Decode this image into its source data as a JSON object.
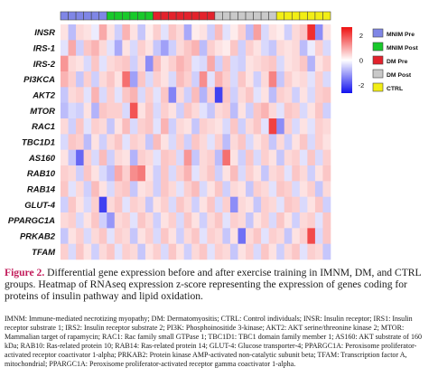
{
  "chart_data": {
    "type": "heatmap",
    "genes": [
      "INSR",
      "IRS-1",
      "IRS-2",
      "PI3KCA",
      "AKT2",
      "MTOR",
      "RAC1",
      "TBC1D1",
      "AS160",
      "RAB10",
      "RAB14",
      "GLUT-4",
      "PPARGC1A",
      "PRKAB2",
      "TFAM"
    ],
    "groups": [
      {
        "name": "MNIM Pre",
        "color": "#7f86e6",
        "n": 6
      },
      {
        "name": "MNIM Post",
        "color": "#18c92a",
        "n": 6
      },
      {
        "name": "DM Pre",
        "color": "#e3222c",
        "n": 8
      },
      {
        "name": "DM Post",
        "color": "#c9c9c9",
        "n": 8
      },
      {
        "name": "CTRL",
        "color": "#f2ee15",
        "n": 7
      }
    ],
    "colorbar": {
      "ticks": [
        "2",
        "0",
        "-2"
      ],
      "min": -2.5,
      "max": 2.5,
      "colors": [
        "#1111ee",
        "#ffffff",
        "#ee1111"
      ]
    },
    "values": [
      [
        0.3,
        -0.7,
        0.4,
        0.3,
        -0.2,
        0.9,
        0.3,
        -0.5,
        0.8,
        0.3,
        -0.6,
        0.2,
        0.5,
        -0.3,
        0.6,
        0.4,
        -0.9,
        0.2,
        0.3,
        -0.5,
        0.7,
        -0.3,
        0.2,
        0.5,
        -0.7,
        1.0,
        -0.4,
        0.3,
        0.2,
        -0.5,
        0.4,
        0.6,
        2.2,
        -1.2,
        0.3
      ],
      [
        -0.3,
        0.9,
        -0.5,
        0.6,
        0.8,
        0.4,
        -0.3,
        -0.9,
        0.3,
        -0.4,
        0.5,
        0.3,
        -0.6,
        -1.0,
        -0.5,
        0.4,
        0.6,
        0.8,
        -0.7,
        0.5,
        0.3,
        0.2,
        0.6,
        -0.5,
        0.5,
        0.3,
        -0.4,
        -0.6,
        0.4,
        0.3,
        0.4,
        -0.7,
        -0.2,
        0.5,
        -0.4
      ],
      [
        1.1,
        0.4,
        0.3,
        -0.4,
        0.6,
        -0.3,
        0.4,
        0.5,
        0.6,
        -0.5,
        0.4,
        -1.2,
        0.7,
        0.3,
        0.5,
        0.8,
        0.6,
        -0.3,
        -0.4,
        0.9,
        -0.5,
        0.6,
        -0.4,
        -0.5,
        0.3,
        0.4,
        0.5,
        0.6,
        -0.4,
        0.3,
        0.4,
        0.6,
        -0.8,
        0.3,
        0.5
      ],
      [
        0.8,
        0.5,
        -0.6,
        0.5,
        -0.5,
        0.4,
        0.6,
        0.3,
        1.5,
        -1.0,
        0.6,
        -0.4,
        0.5,
        0.3,
        -0.4,
        0.7,
        0.5,
        -0.5,
        1.2,
        -0.3,
        0.8,
        0.5,
        -0.4,
        0.6,
        0.3,
        -0.5,
        0.4,
        1.3,
        -0.6,
        0.5,
        0.3,
        0.4,
        -0.3,
        0.5,
        -0.4
      ],
      [
        -0.6,
        0.4,
        0.5,
        -0.3,
        0.8,
        -0.4,
        0.5,
        -0.3,
        0.6,
        0.8,
        -0.4,
        0.5,
        -0.3,
        0.6,
        -1.3,
        0.4,
        -0.5,
        0.7,
        -0.8,
        0.5,
        -2.0,
        0.6,
        -0.5,
        0.4,
        0.6,
        -0.3,
        0.3,
        -0.7,
        0.5,
        0.4,
        -0.5,
        0.3,
        -0.4,
        0.5,
        0.6
      ],
      [
        -0.7,
        -0.4,
        -0.5,
        0.3,
        -0.8,
        0.6,
        0.5,
        0.5,
        -0.4,
        1.8,
        0.3,
        0.6,
        -0.4,
        0.5,
        0.3,
        -0.5,
        0.6,
        0.4,
        -0.3,
        -0.6,
        0.4,
        0.5,
        -0.7,
        0.3,
        -0.5,
        0.6,
        0.8,
        0.4,
        -0.3,
        0.6,
        0.5,
        -0.4,
        0.3,
        0.6,
        -0.5
      ],
      [
        0.4,
        -0.5,
        0.6,
        -0.3,
        0.5,
        0.4,
        -0.6,
        0.3,
        0.7,
        -0.4,
        0.5,
        0.6,
        -0.3,
        0.8,
        -0.5,
        0.4,
        0.3,
        -0.6,
        0.5,
        0.4,
        0.3,
        -0.4,
        0.6,
        -0.5,
        0.4,
        0.6,
        -0.3,
        2.0,
        -1.2,
        0.5,
        -0.4,
        0.3,
        -0.3,
        0.5,
        0.4
      ],
      [
        -0.4,
        0.6,
        0.5,
        -0.7,
        0.3,
        -0.5,
        0.4,
        0.6,
        -0.3,
        0.5,
        0.4,
        -0.6,
        0.7,
        0.3,
        -0.4,
        0.5,
        -0.5,
        0.6,
        0.4,
        -0.3,
        0.5,
        -0.7,
        0.4,
        0.6,
        -0.4,
        0.3,
        0.5,
        -0.6,
        0.4,
        -0.5,
        0.3,
        0.6,
        -0.4,
        0.5,
        0.3
      ],
      [
        0.3,
        -0.6,
        -1.6,
        0.5,
        -0.4,
        0.7,
        -0.5,
        0.4,
        0.3,
        -0.8,
        0.5,
        0.4,
        -0.3,
        0.6,
        0.5,
        -0.4,
        1.1,
        -0.6,
        0.4,
        0.5,
        -0.7,
        1.5,
        0.3,
        -0.5,
        0.6,
        -0.4,
        0.5,
        0.3,
        -0.6,
        0.4,
        0.5,
        -0.3,
        0.6,
        -0.4,
        0.5
      ],
      [
        0.5,
        0.4,
        -0.5,
        0.6,
        0.3,
        -0.4,
        -0.7,
        0.9,
        0.5,
        1.2,
        1.4,
        0.3,
        -0.5,
        0.6,
        -0.4,
        0.5,
        0.8,
        -0.3,
        0.4,
        0.6,
        -0.5,
        0.3,
        0.7,
        -0.4,
        0.5,
        0.3,
        -0.6,
        0.4,
        0.5,
        -0.3,
        0.6,
        0.4,
        -0.5,
        0.3,
        0.6
      ],
      [
        0.6,
        -0.3,
        0.4,
        -0.5,
        0.7,
        0.3,
        -0.4,
        0.5,
        0.6,
        -0.6,
        0.3,
        0.4,
        -0.5,
        0.6,
        0.4,
        -0.3,
        0.5,
        0.7,
        -0.4,
        0.3,
        0.6,
        -0.5,
        0.4,
        0.3,
        -0.6,
        0.5,
        0.4,
        -0.3,
        0.6,
        0.5,
        -0.4,
        0.3,
        0.5,
        -0.6,
        0.4
      ],
      [
        -0.5,
        0.6,
        0.3,
        -0.4,
        0.5,
        -2.0,
        0.4,
        0.6,
        -0.3,
        0.5,
        0.4,
        -0.6,
        0.3,
        0.5,
        -0.4,
        0.6,
        0.4,
        -0.5,
        0.3,
        0.6,
        -0.4,
        0.5,
        -1.2,
        0.4,
        0.3,
        -0.6,
        0.5,
        0.4,
        -0.3,
        0.6,
        0.5,
        -0.4,
        0.3,
        0.6,
        -0.5
      ],
      [
        0.4,
        0.5,
        -0.4,
        0.3,
        0.6,
        -0.5,
        -1.1,
        0.4,
        0.5,
        -0.3,
        0.6,
        0.4,
        -0.5,
        0.3,
        0.5,
        -0.4,
        0.6,
        0.3,
        -0.5,
        0.4,
        0.6,
        -0.3,
        0.5,
        0.4,
        -0.6,
        0.3,
        0.5,
        -0.4,
        0.6,
        0.3,
        -0.5,
        0.4,
        0.5,
        -0.3,
        0.6
      ],
      [
        -0.6,
        0.3,
        0.5,
        -0.4,
        0.4,
        0.6,
        -0.3,
        0.5,
        0.4,
        -0.6,
        0.3,
        0.5,
        -0.4,
        0.6,
        0.3,
        -0.5,
        0.4,
        0.6,
        -0.3,
        0.5,
        0.4,
        -0.6,
        0.3,
        -1.5,
        0.4,
        0.6,
        -0.3,
        0.5,
        0.4,
        -0.6,
        0.3,
        0.5,
        1.9,
        -0.4,
        0.6
      ],
      [
        0.5,
        -0.4,
        0.6,
        0.3,
        -0.5,
        0.4,
        0.6,
        -0.3,
        0.5,
        0.4,
        -0.6,
        0.3,
        0.5,
        -0.4,
        0.6,
        0.3,
        -0.5,
        0.4,
        0.6,
        -0.3,
        0.5,
        0.4,
        -0.6,
        0.3,
        0.5,
        -0.4,
        0.6,
        0.3,
        -0.5,
        0.4,
        0.6,
        -0.3,
        0.5,
        0.4,
        -0.6
      ]
    ]
  },
  "caption": {
    "label": "Figure 2.",
    "text": "Differential gene expression before and after exercise training in IMNM, DM, and CTRL groups. Heatmap of RNAseq expression z-score representing the expression of genes coding for proteins of insulin pathway and lipid oxidation.",
    "abbreviations": "IMNM: Immune-mediated necrotizing myopathy; DM: Dermatomyositis; CTRL: Control individuals; INSR: Insulin receptor; IRS1: Insulin receptor substrate 1; IRS2: Insulin receptor substrate 2; PI3K: Phosphoinositide 3-kinase; AKT2: AKT serine/threonine kinase 2; MTOR: Mammalian target of rapamycin; RAC1: Rac family small GTPase 1; TBC1D1: TBC1 domain family member 1; AS160: AKT substrate of 160 kDa; RAB10: Ras-related protein 10; RAB14: Ras-related protein 14; GLUT-4: Glucose transporter-4; PPARGC1A: Peroxisome proliferator-activated receptor coactivator 1-alpha; PRKAB2: Protein kinase AMP-activated non-catalytic subunit beta; TFAM: Transcription factor A, mitochondrial; PPARGC1A: Peroxisome proliferator-activated receptor gamma coactivator 1-alpha."
  }
}
